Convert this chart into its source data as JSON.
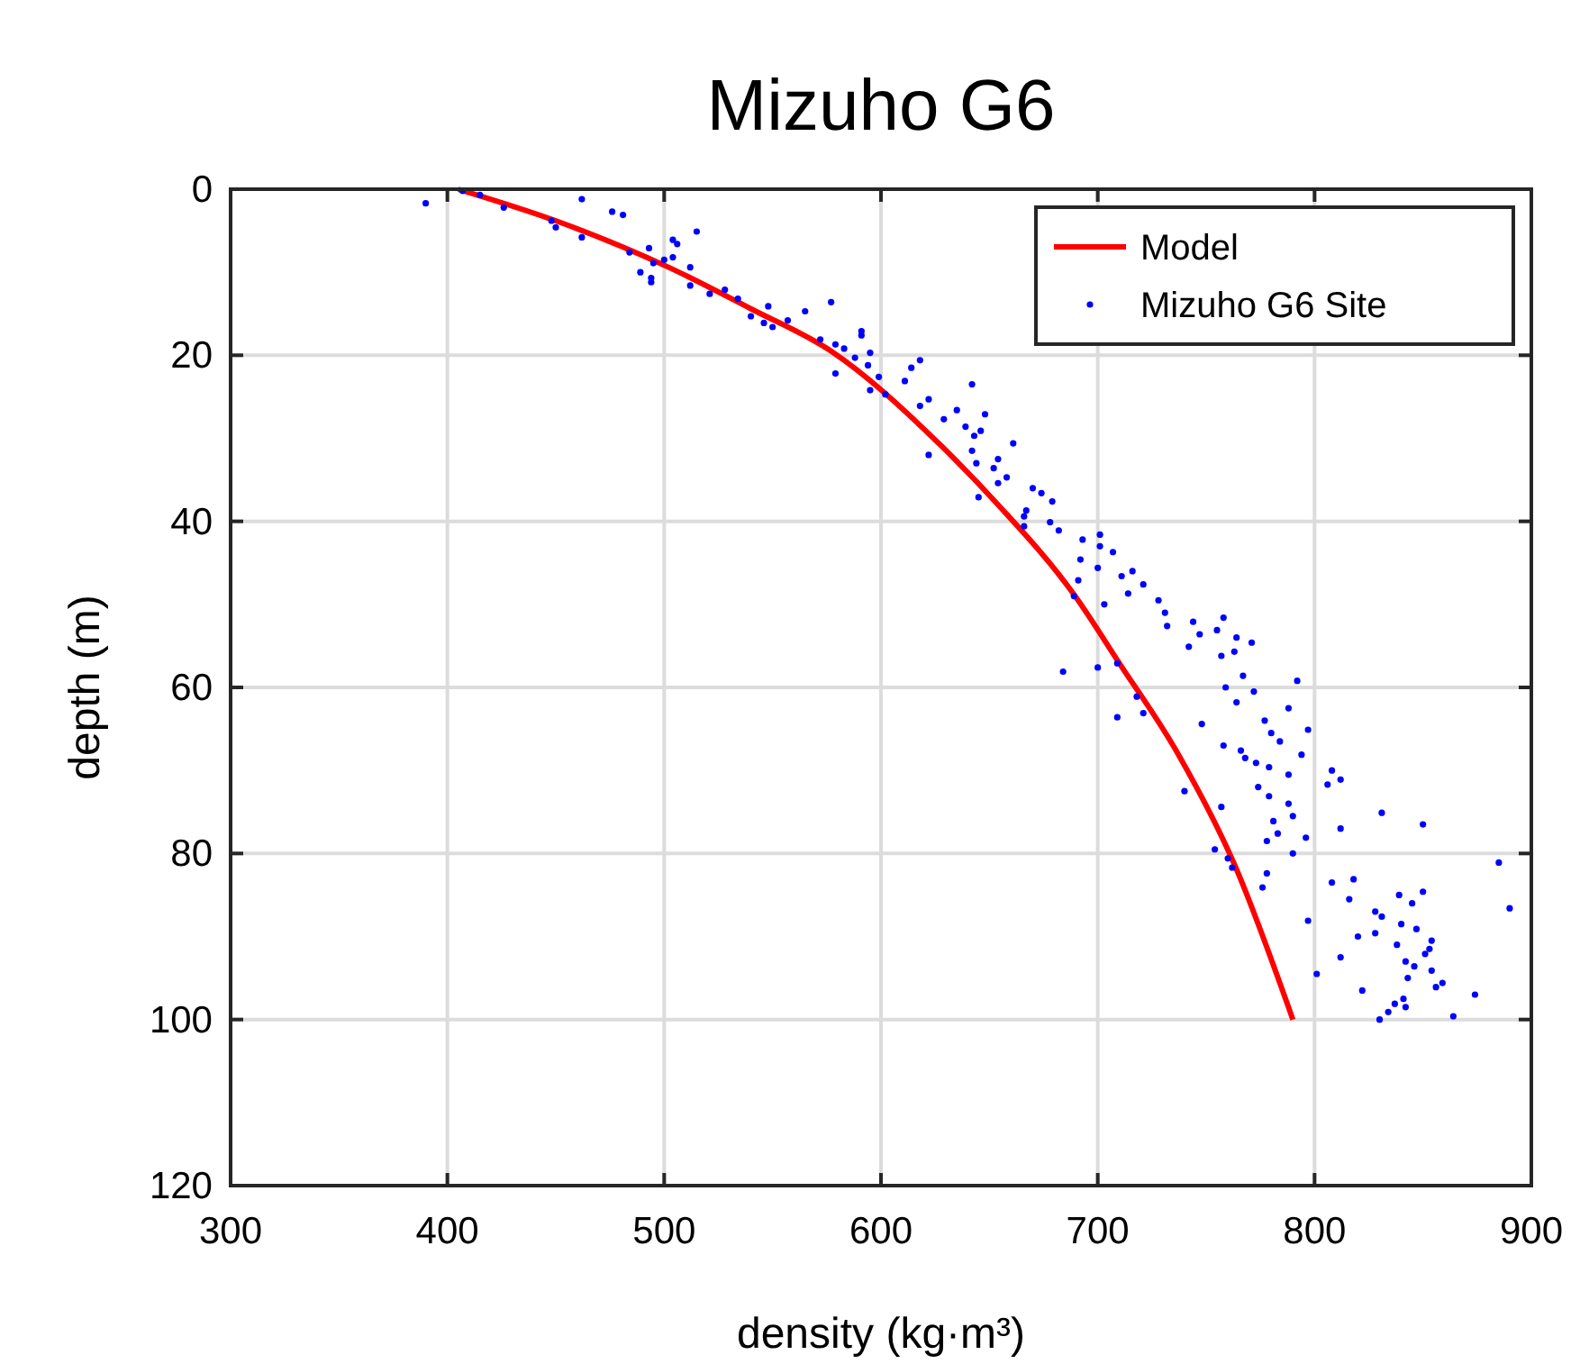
{
  "chart_data": {
    "type": "scatter",
    "title": "Mizuho G6",
    "xlabel": "density (kg·m³)",
    "ylabel": "depth (m)",
    "xlim": [
      300,
      900
    ],
    "xticks": [
      300,
      400,
      500,
      600,
      700,
      800,
      900
    ],
    "ylim": [
      120,
      0
    ],
    "yticks": [
      0,
      20,
      40,
      60,
      80,
      100,
      120
    ],
    "grid": true,
    "legend": "top right",
    "series": [
      {
        "name": "Model",
        "type": "line",
        "color": "#ff0000",
        "marker": "none",
        "x": [
          405,
          450,
          502,
          540,
          577,
          627,
          654,
          689,
          710,
          737,
          763,
          790
        ],
        "values": [
          0,
          3.8,
          9.4,
          14.4,
          19.5,
          30.7,
          38,
          48.8,
          57.1,
          68,
          81.3,
          100
        ]
      },
      {
        "name": "Mizuho G6 Site",
        "color": "#0000ff",
        "marker": "circle",
        "x": [
          390,
          407,
          415,
          426,
          448,
          450,
          462,
          462,
          476,
          481,
          484,
          493,
          504,
          506,
          504,
          500,
          495,
          489,
          494,
          494,
          515,
          512,
          512,
          521,
          528,
          534,
          540,
          548,
          546,
          550,
          557,
          565,
          577,
          572,
          579,
          583,
          588,
          591,
          591,
          595,
          594,
          579,
          599,
          595,
          602,
          618,
          614,
          611,
          642,
          622,
          618,
          635,
          629,
          648,
          639,
          646,
          643,
          661,
          622,
          642,
          644,
          652,
          654,
          658,
          654,
          645,
          670,
          674,
          679,
          667,
          666,
          678,
          682,
          666,
          693,
          701,
          692,
          701,
          707,
          700,
          711,
          716,
          721,
          714,
          691,
          728,
          689,
          703,
          731,
          732,
          684,
          700,
          709,
          718,
          721,
          709,
          744,
          758,
          747,
          755,
          764,
          771,
          742,
          763,
          757,
          767,
          792,
          759,
          772,
          764,
          788,
          748,
          777,
          797,
          780,
          784,
          758,
          766,
          794,
          768,
          773,
          779,
          808,
          812,
          806,
          788,
          740,
          774,
          779,
          788,
          757,
          831,
          850,
          790,
          781,
          812,
          783,
          778,
          796,
          754,
          790,
          760,
          762,
          885,
          778,
          776,
          808,
          818,
          816,
          839,
          850,
          845,
          828,
          831,
          890,
          797,
          840,
          847,
          820,
          828,
          854,
          853,
          851,
          838,
          842,
          846,
          812,
          854,
          801,
          843,
          859,
          856,
          822,
          874,
          841,
          837,
          842,
          834,
          864,
          830
        ],
        "values": [
          1.7,
          0.2,
          0.7,
          2.2,
          3.8,
          4.6,
          5.8,
          1.2,
          2.7,
          3.1,
          7.6,
          7.1,
          6.1,
          6.6,
          8.2,
          8.5,
          8.9,
          10,
          10.7,
          11.2,
          5.1,
          9.4,
          11.6,
          12.6,
          12.1,
          13.2,
          15.3,
          14.1,
          16.1,
          16.6,
          15.8,
          14.7,
          13.6,
          18.1,
          18.7,
          19.2,
          20.3,
          17.1,
          17.6,
          19.7,
          21.2,
          22.2,
          22.6,
          24.2,
          24.7,
          20.6,
          21.5,
          23.1,
          23.5,
          25.3,
          26.1,
          26.6,
          27.7,
          27.1,
          28.6,
          29.1,
          29.7,
          30.6,
          32,
          31.5,
          33,
          33.6,
          32.5,
          34.7,
          35.4,
          37.1,
          36,
          36.6,
          37.6,
          38.7,
          39.4,
          40.1,
          41.1,
          40.6,
          42.2,
          41.6,
          44.6,
          43,
          43.7,
          45.6,
          46.6,
          46,
          47.6,
          48.7,
          47.1,
          49.5,
          49,
          50,
          51,
          52.6,
          58.1,
          57.6,
          57.1,
          61.1,
          63.1,
          63.6,
          52.1,
          51.6,
          53.6,
          53.1,
          54,
          54.6,
          55.1,
          55.7,
          56.2,
          58.6,
          59.2,
          60,
          60.5,
          61.8,
          62.5,
          64.4,
          64,
          65.1,
          65.5,
          66.5,
          67,
          67.6,
          68.1,
          68.5,
          69.1,
          69.6,
          70,
          71.1,
          71.7,
          70.5,
          72.5,
          72,
          73.1,
          74,
          74.4,
          75.1,
          76.5,
          75.5,
          76.1,
          77,
          77.6,
          78.5,
          78.1,
          79.5,
          80,
          80.6,
          81.7,
          81.1,
          82.4,
          84.1,
          83.5,
          83.1,
          85.5,
          85,
          84.6,
          86,
          87,
          87.6,
          86.6,
          88.1,
          88.5,
          89.1,
          90,
          89.6,
          90.5,
          91.5,
          92.1,
          91,
          93,
          93.6,
          92.5,
          94.1,
          94.5,
          95,
          95.6,
          96.1,
          96.5,
          97,
          97.5,
          98.1,
          98.5,
          99.1,
          99.6,
          100
        ]
      }
    ]
  }
}
